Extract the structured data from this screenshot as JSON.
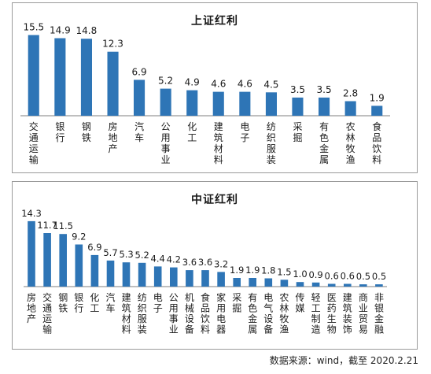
{
  "chart_data": [
    {
      "type": "bar",
      "title": "上证红利",
      "color": "#2e75b6",
      "categories": [
        "交通运输",
        "银行",
        "钢铁",
        "房地产",
        "汽车",
        "公用事业",
        "化工",
        "建筑材料",
        "电子",
        "纺织服装",
        "采掘",
        "有色金属",
        "农林牧渔",
        "食品饮料"
      ],
      "values": [
        15.5,
        14.9,
        14.8,
        12.3,
        6.9,
        5.2,
        4.9,
        4.6,
        4.6,
        4.5,
        3.5,
        3.5,
        2.8,
        1.9
      ],
      "value_labels": [
        "15.5",
        "14.9",
        "14.8",
        "12.3",
        "6.9",
        "5.2",
        "4.9",
        "4.6",
        "4.6",
        "4.5",
        "3.5",
        "3.5",
        "2.8",
        "1.9"
      ],
      "ylim": [
        0,
        18
      ],
      "grid": false,
      "legend": "none"
    },
    {
      "type": "bar",
      "title": "中证红利",
      "color": "#2e75b6",
      "categories": [
        "房地产",
        "交通运输",
        "钢铁",
        "银行",
        "化工",
        "汽车",
        "建筑材料",
        "纺织服装",
        "电子",
        "公用事业",
        "机械设备",
        "食品饮料",
        "家用电器",
        "采掘",
        "有色金属",
        "电气设备",
        "农林牧渔",
        "传媒",
        "轻工制造",
        "医药生物",
        "建筑装饰",
        "商业贸易",
        "非银金融"
      ],
      "values": [
        14.3,
        11.7,
        11.5,
        9.2,
        6.9,
        5.7,
        5.3,
        5.2,
        4.4,
        4.2,
        3.6,
        3.6,
        3.2,
        1.9,
        1.9,
        1.8,
        1.5,
        1.0,
        0.9,
        0.6,
        0.6,
        0.5,
        0.5
      ],
      "value_labels": [
        "14.3",
        "11.7",
        "11.5",
        "9.2",
        "6.9",
        "5.7",
        "5.3",
        "5.2",
        "4.4",
        "4.2",
        "3.6",
        "3.6",
        "3.2",
        "1.9",
        "1.9",
        "1.8",
        "1.5",
        "1.0",
        "0.9",
        "0.6",
        "0.6",
        "0.5",
        "0.5"
      ],
      "ylim": [
        0,
        16
      ],
      "grid": false,
      "legend": "none"
    }
  ],
  "source_note": "数据来源：wind，截至 2020.2.21"
}
